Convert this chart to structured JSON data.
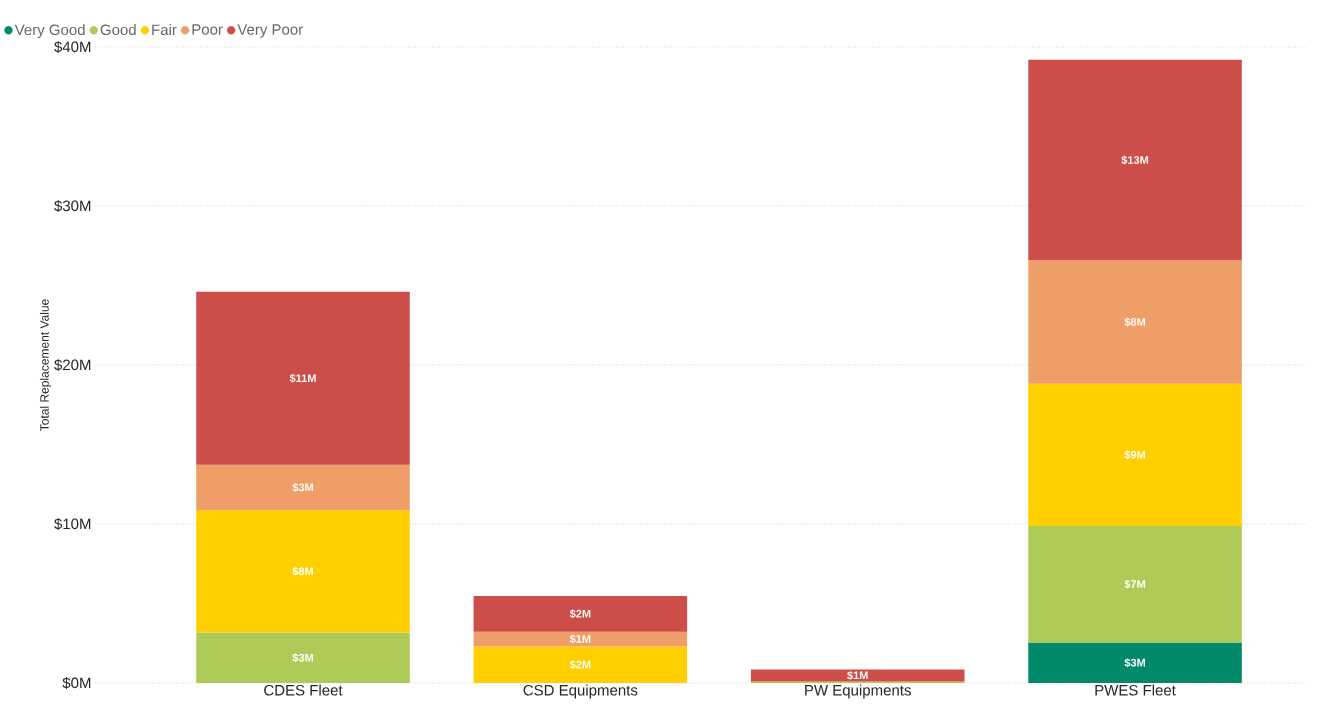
{
  "chart_data": {
    "type": "bar",
    "stacked": true,
    "ylabel": "Total Replacement Value",
    "categories": [
      "CDES Fleet",
      "CSD Equipments",
      "PW Equipments",
      "PWES Fleet"
    ],
    "series": [
      {
        "name": "Very Good",
        "color": "#018a6a",
        "values": [
          null,
          null,
          null,
          2.55
        ],
        "value_labels": [
          null,
          null,
          null,
          "$3M"
        ]
      },
      {
        "name": "Good",
        "color": "#afcb57",
        "values": [
          3.17,
          null,
          0.1,
          7.33
        ],
        "value_labels": [
          "$3M",
          null,
          null,
          "$7M"
        ]
      },
      {
        "name": "Fair",
        "color": "#ffcf00",
        "values": [
          7.7,
          2.3,
          null,
          8.94
        ],
        "value_labels": [
          "$8M",
          "$2M",
          null,
          "$9M"
        ]
      },
      {
        "name": "Poor",
        "color": "#ee9e66",
        "values": [
          2.86,
          0.93,
          null,
          7.76
        ],
        "value_labels": [
          "$3M",
          "$1M",
          null,
          "$8M"
        ]
      },
      {
        "name": "Very Poor",
        "color": "#cd4e48",
        "values": [
          10.87,
          2.24,
          0.75,
          12.61
        ],
        "value_labels": [
          "$11M",
          "$2M",
          "$1M",
          "$13M"
        ]
      }
    ],
    "ylim": [
      0,
      40
    ],
    "yticks": [
      {
        "value": 0,
        "label": "$0M"
      },
      {
        "value": 10,
        "label": "$10M"
      },
      {
        "value": 20,
        "label": "$20M"
      },
      {
        "value": 30,
        "label": "$30M"
      },
      {
        "value": 40,
        "label": "$40M"
      }
    ],
    "grid": "y",
    "legend": "top left"
  }
}
